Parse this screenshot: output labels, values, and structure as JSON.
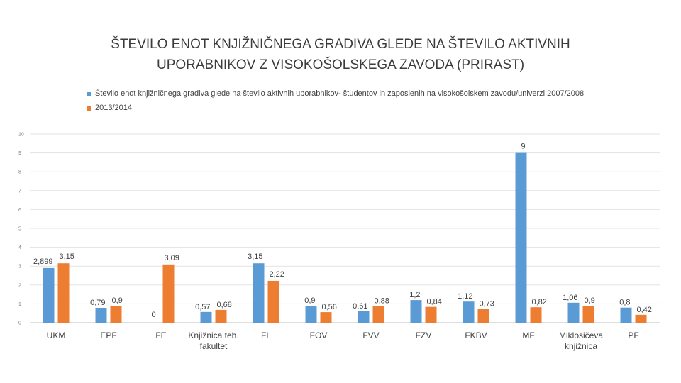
{
  "chart_data": {
    "type": "bar",
    "title_lines": [
      "ŠTEVILO ENOT KNJIŽNIČNEGA GRADIVA GLEDE NA ŠTEVILO AKTIVNIH",
      "UPORABNIKOV Z VISOKOŠOLSKEGA ZAVODA (PRIRAST)"
    ],
    "categories": [
      "UKM",
      "EPF",
      "FE",
      "Knjižnica teh. fakultet",
      "FL",
      "FOV",
      "FVV",
      "FZV",
      "FKBV",
      "MF",
      "Miklošičeva knjižnica",
      "PF"
    ],
    "category_lines": [
      [
        "UKM"
      ],
      [
        "EPF"
      ],
      [
        "FE"
      ],
      [
        "Knjižnica teh.",
        "fakultet"
      ],
      [
        "FL"
      ],
      [
        "FOV"
      ],
      [
        "FVV"
      ],
      [
        "FZV"
      ],
      [
        "FKBV"
      ],
      [
        "MF"
      ],
      [
        "Miklošičeva",
        "knjižnica"
      ],
      [
        "PF"
      ]
    ],
    "series": [
      {
        "name": "Število enot knjižničnega gradiva glede na število aktivnih uporabnikov- študentov in zaposlenih na visokošolskem zavodu/univerzi  2007/2008",
        "color": "#5b9bd5",
        "values": [
          2.899,
          0.79,
          null,
          0.57,
          3.15,
          0.9,
          0.61,
          1.2,
          1.12,
          9,
          1.06,
          0.8
        ],
        "labels": [
          "2,899",
          "0,79",
          "",
          "0,57",
          "3,15",
          "0,9",
          "0,61",
          "1,2",
          "1,12",
          "9",
          "1,06",
          "0,8"
        ]
      },
      {
        "name": "2013/2014",
        "color": "#ed7d31",
        "values": [
          3.15,
          0.9,
          3.09,
          0.68,
          2.22,
          0.56,
          0.88,
          0.84,
          0.73,
          0.82,
          0.9,
          0.42
        ],
        "labels": [
          "3,15",
          "0,9",
          "3,09",
          "0,68",
          "2,22",
          "0,56",
          "0,88",
          "0,84",
          "0,73",
          "0,82",
          "0,9",
          "0,42"
        ]
      }
    ],
    "extra_labels": [
      {
        "category": "FE",
        "text": "0"
      }
    ],
    "ylim": [
      0,
      10
    ],
    "yticks": [
      "0",
      "1",
      "2",
      "3",
      "4",
      "5",
      "6",
      "7",
      "8",
      "9",
      "10"
    ],
    "grid": true,
    "legend_position": "top"
  }
}
